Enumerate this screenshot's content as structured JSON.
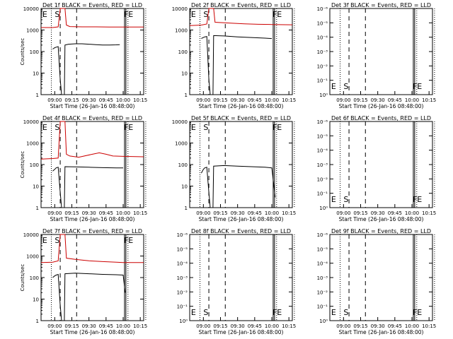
{
  "chart_data": [
    {
      "type": "line",
      "title": "Det 1f BLACK = Events, RED = LLD",
      "xlabel": "Start Time (26-Jan-16 08:48:00)",
      "ylabel": "Counts/sec",
      "scale": "log",
      "ylim": [
        1,
        10000
      ],
      "x_ticks": [
        "09:00",
        "09:15",
        "09:30",
        "09:45",
        "10:00",
        "10:15"
      ],
      "y_ticks": [
        "1",
        "10",
        "100",
        "1000",
        "10000"
      ],
      "markers": [
        "E",
        "S",
        "FE"
      ],
      "series": [
        {
          "name": "BLACK",
          "color": "#000000",
          "points": [
            [
              8.97,
              130
            ],
            [
              9.0,
              150
            ],
            [
              9.02,
              160
            ],
            [
              9.05,
              170
            ],
            [
              9.08,
              5
            ],
            [
              9.1,
              1
            ],
            [
              9.14,
              1
            ],
            [
              9.15,
              200
            ],
            [
              9.2,
              220
            ],
            [
              9.3,
              230
            ],
            [
              9.4,
              230
            ],
            [
              9.5,
              220
            ],
            [
              9.6,
              210
            ],
            [
              9.7,
              200
            ],
            [
              9.8,
              200
            ],
            [
              9.9,
              205
            ],
            [
              9.95,
              210
            ]
          ]
        },
        {
          "name": "RED",
          "color": "#cc0000",
          "points": [
            [
              8.8,
              1300
            ],
            [
              8.97,
              1300
            ],
            [
              9.05,
              1400
            ],
            [
              9.08,
              10000
            ],
            [
              9.15,
              10000
            ],
            [
              9.17,
              1700
            ],
            [
              9.22,
              1450
            ],
            [
              9.4,
              1400
            ],
            [
              9.6,
              1400
            ],
            [
              9.8,
              1380
            ],
            [
              10.0,
              1380
            ],
            [
              10.3,
              1370
            ]
          ]
        }
      ]
    },
    {
      "type": "line",
      "title": "Det 2f BLACK = Events, RED = LLD",
      "xlabel": "Start Time (26-Jan-16 08:48:00)",
      "ylabel": "",
      "scale": "log",
      "ylim": [
        1,
        10000
      ],
      "x_ticks": [
        "09:00",
        "09:15",
        "09:30",
        "09:45",
        "10:00",
        "10:15"
      ],
      "y_ticks": [
        "1",
        "10",
        "100",
        "1000",
        "10000"
      ],
      "markers": [
        "E",
        "S",
        "FE"
      ],
      "series": [
        {
          "name": "BLACK",
          "color": "#000000",
          "points": [
            [
              8.97,
              400
            ],
            [
              9.0,
              450
            ],
            [
              9.02,
              480
            ],
            [
              9.05,
              500
            ],
            [
              9.08,
              5
            ],
            [
              9.1,
              1
            ],
            [
              9.14,
              1
            ],
            [
              9.15,
              550
            ],
            [
              9.3,
              530
            ],
            [
              9.5,
              480
            ],
            [
              9.7,
              450
            ],
            [
              9.9,
              420
            ],
            [
              10.0,
              400
            ]
          ]
        },
        {
          "name": "RED",
          "color": "#cc0000",
          "points": [
            [
              8.8,
              1600
            ],
            [
              8.97,
              1700
            ],
            [
              9.05,
              1900
            ],
            [
              9.08,
              10000
            ],
            [
              9.15,
              10000
            ],
            [
              9.17,
              2300
            ],
            [
              9.4,
              2100
            ],
            [
              9.6,
              1950
            ],
            [
              9.8,
              1850
            ],
            [
              10.0,
              1800
            ],
            [
              10.3,
              1750
            ]
          ]
        }
      ]
    },
    {
      "type": "line",
      "title": "Det 3f BLACK = Events, RED = LLD",
      "xlabel": "Start Time (26-Jan-16 08:48:00)",
      "ylabel": "",
      "scale": "log",
      "ylim": [
        1,
        1e-06
      ],
      "x_ticks": [
        "09:00",
        "09:15",
        "09:30",
        "09:45",
        "10:00",
        "10:15"
      ],
      "y_ticks": [
        "10⁰",
        "10⁻¹",
        "10⁻²",
        "10⁻³",
        "10⁻⁴",
        "10⁻⁵",
        "10⁻⁶"
      ],
      "markers": [
        "E",
        "S",
        "FE"
      ],
      "series": []
    },
    {
      "type": "line",
      "title": "Det 4f BLACK = Events, RED = LLD",
      "xlabel": "Start Time (26-Jan-16 08:48:00)",
      "ylabel": "Counts/sec",
      "scale": "log",
      "ylim": [
        1,
        10000
      ],
      "x_ticks": [
        "09:00",
        "09:15",
        "09:30",
        "09:45",
        "10:00",
        "10:15"
      ],
      "y_ticks": [
        "1",
        "10",
        "100",
        "1000",
        "10000"
      ],
      "markers": [
        "E",
        "S",
        "FE"
      ],
      "series": [
        {
          "name": "BLACK",
          "color": "#000000",
          "points": [
            [
              8.97,
              50
            ],
            [
              9.0,
              60
            ],
            [
              9.02,
              70
            ],
            [
              9.05,
              75
            ],
            [
              9.08,
              5
            ],
            [
              9.1,
              1
            ],
            [
              9.14,
              1
            ],
            [
              9.15,
              80
            ],
            [
              9.3,
              78
            ],
            [
              9.5,
              75
            ],
            [
              9.7,
              72
            ],
            [
              9.9,
              70
            ],
            [
              10.0,
              70
            ]
          ]
        },
        {
          "name": "RED",
          "color": "#cc0000",
          "points": [
            [
              8.8,
              180
            ],
            [
              8.97,
              190
            ],
            [
              9.05,
              200
            ],
            [
              9.08,
              10000
            ],
            [
              9.15,
              10000
            ],
            [
              9.17,
              300
            ],
            [
              9.22,
              250
            ],
            [
              9.35,
              220
            ],
            [
              9.55,
              300
            ],
            [
              9.65,
              350
            ],
            [
              9.75,
              300
            ],
            [
              9.85,
              250
            ],
            [
              10.0,
              240
            ],
            [
              10.3,
              230
            ]
          ]
        }
      ]
    },
    {
      "type": "line",
      "title": "Det 5f BLACK = Events, RED = LLD",
      "xlabel": "Start Time (26-Jan-16 08:48:00)",
      "ylabel": "",
      "scale": "log",
      "ylim": [
        1,
        10000
      ],
      "x_ticks": [
        "09:00",
        "09:15",
        "09:30",
        "09:45",
        "10:00",
        "10:15"
      ],
      "y_ticks": [
        "1",
        "10",
        "100",
        "1000",
        "10000"
      ],
      "markers": [
        "E",
        "S",
        "FE"
      ],
      "series": [
        {
          "name": "BLACK",
          "color": "#000000",
          "points": [
            [
              8.97,
              40
            ],
            [
              9.0,
              60
            ],
            [
              9.02,
              70
            ],
            [
              9.05,
              75
            ],
            [
              9.08,
              5
            ],
            [
              9.1,
              1
            ],
            [
              9.14,
              1
            ],
            [
              9.15,
              85
            ],
            [
              9.3,
              90
            ],
            [
              9.5,
              85
            ],
            [
              9.7,
              80
            ],
            [
              9.9,
              75
            ],
            [
              10.0,
              70
            ],
            [
              10.05,
              3
            ]
          ]
        }
      ]
    },
    {
      "type": "line",
      "title": "Det 6f BLACK = Events, RED = LLD",
      "xlabel": "Start Time (26-Jan-16 08:48:00)",
      "ylabel": "",
      "scale": "log",
      "ylim": [
        1,
        1e-06
      ],
      "x_ticks": [
        "09:00",
        "09:15",
        "09:30",
        "09:45",
        "10:00",
        "10:15"
      ],
      "y_ticks": [
        "10⁰",
        "10⁻¹",
        "10⁻²",
        "10⁻³",
        "10⁻⁴",
        "10⁻⁵",
        "10⁻⁶"
      ],
      "markers": [
        "E",
        "S",
        "FE"
      ],
      "series": []
    },
    {
      "type": "line",
      "title": "Det 7f BLACK = Events, RED = LLD",
      "xlabel": "Start Time (26-Jan-16 08:48:00)",
      "ylabel": "Counts/sec",
      "scale": "log",
      "ylim": [
        1,
        10000
      ],
      "x_ticks": [
        "09:00",
        "09:15",
        "09:30",
        "09:45",
        "10:00",
        "10:15"
      ],
      "y_ticks": [
        "1",
        "10",
        "100",
        "1000",
        "10000"
      ],
      "markers": [
        "E",
        "S",
        "FE"
      ],
      "series": [
        {
          "name": "BLACK",
          "color": "#000000",
          "points": [
            [
              8.97,
              100
            ],
            [
              9.0,
              120
            ],
            [
              9.02,
              130
            ],
            [
              9.05,
              140
            ],
            [
              9.08,
              5
            ],
            [
              9.1,
              1
            ],
            [
              9.14,
              1
            ],
            [
              9.15,
              150
            ],
            [
              9.3,
              160
            ],
            [
              9.5,
              150
            ],
            [
              9.7,
              140
            ],
            [
              9.9,
              135
            ],
            [
              10.0,
              130
            ],
            [
              10.03,
              20
            ]
          ]
        },
        {
          "name": "RED",
          "color": "#cc0000",
          "points": [
            [
              8.8,
              500
            ],
            [
              8.97,
              520
            ],
            [
              9.05,
              600
            ],
            [
              9.08,
              10000
            ],
            [
              9.15,
              10000
            ],
            [
              9.17,
              800
            ],
            [
              9.3,
              700
            ],
            [
              9.5,
              600
            ],
            [
              9.7,
              550
            ],
            [
              9.9,
              520
            ],
            [
              10.0,
              500
            ],
            [
              10.3,
              500
            ]
          ]
        }
      ]
    },
    {
      "type": "line",
      "title": "Det 8f BLACK = Events, RED = LLD",
      "xlabel": "Start Time (26-Jan-16 08:48:00)",
      "ylabel": "",
      "scale": "log",
      "ylim": [
        1,
        1e-06
      ],
      "x_ticks": [
        "09:00",
        "09:15",
        "09:30",
        "09:45",
        "10:00",
        "10:15"
      ],
      "y_ticks": [
        "10⁰",
        "10⁻¹",
        "10⁻²",
        "10⁻³",
        "10⁻⁴",
        "10⁻⁵",
        "10⁻⁶"
      ],
      "markers": [
        "E",
        "S",
        "FE"
      ],
      "series": []
    },
    {
      "type": "line",
      "title": "Det 9f BLACK = Events, RED = LLD",
      "xlabel": "Start Time (26-Jan-16 08:48:00)",
      "ylabel": "",
      "scale": "log",
      "ylim": [
        1,
        1e-06
      ],
      "x_ticks": [
        "09:00",
        "09:15",
        "09:30",
        "09:45",
        "10:00",
        "10:15"
      ],
      "y_ticks": [
        "10⁰",
        "10⁻¹",
        "10⁻²",
        "10⁻³",
        "10⁻⁴",
        "10⁻⁵",
        "10⁻⁶"
      ],
      "markers": [
        "E",
        "S",
        "FE"
      ],
      "series": []
    }
  ]
}
